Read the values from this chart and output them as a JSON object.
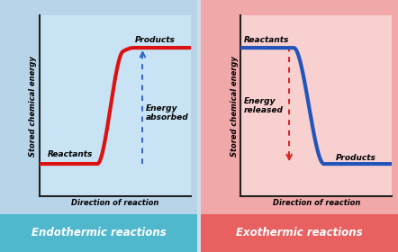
{
  "endo_outer_bg": "#b8d4e8",
  "exo_outer_bg": "#f0a8a8",
  "endo_plot_bg": "#c8e4f4",
  "exo_plot_bg": "#f8d0d0",
  "endo_label_bg": "#50b8cc",
  "exo_label_bg": "#e86060",
  "axis_color": "#222222",
  "curve_color_endo": "#dd1111",
  "curve_color_exo": "#2255bb",
  "arrow_color_endo": "#3366cc",
  "arrow_color_exo": "#dd2222",
  "overall_bg": "#d0dce8",
  "endo_title": "Endothermic reactions",
  "exo_title": "Exothermic reactions",
  "ylabel": "Stored chemical energy",
  "xlabel": "Direction of reaction",
  "endo_reactants_label": "Reactants",
  "endo_products_label": "Products",
  "endo_energy_label": "Energy\nabsorbed",
  "exo_reactants_label": "Reactants",
  "exo_products_label": "Products",
  "exo_energy_label": "Energy\nreleased",
  "label_fontsize": 6.5,
  "title_fontsize": 8.5,
  "axis_label_fontsize": 6.0,
  "curve_lw": 3.0
}
